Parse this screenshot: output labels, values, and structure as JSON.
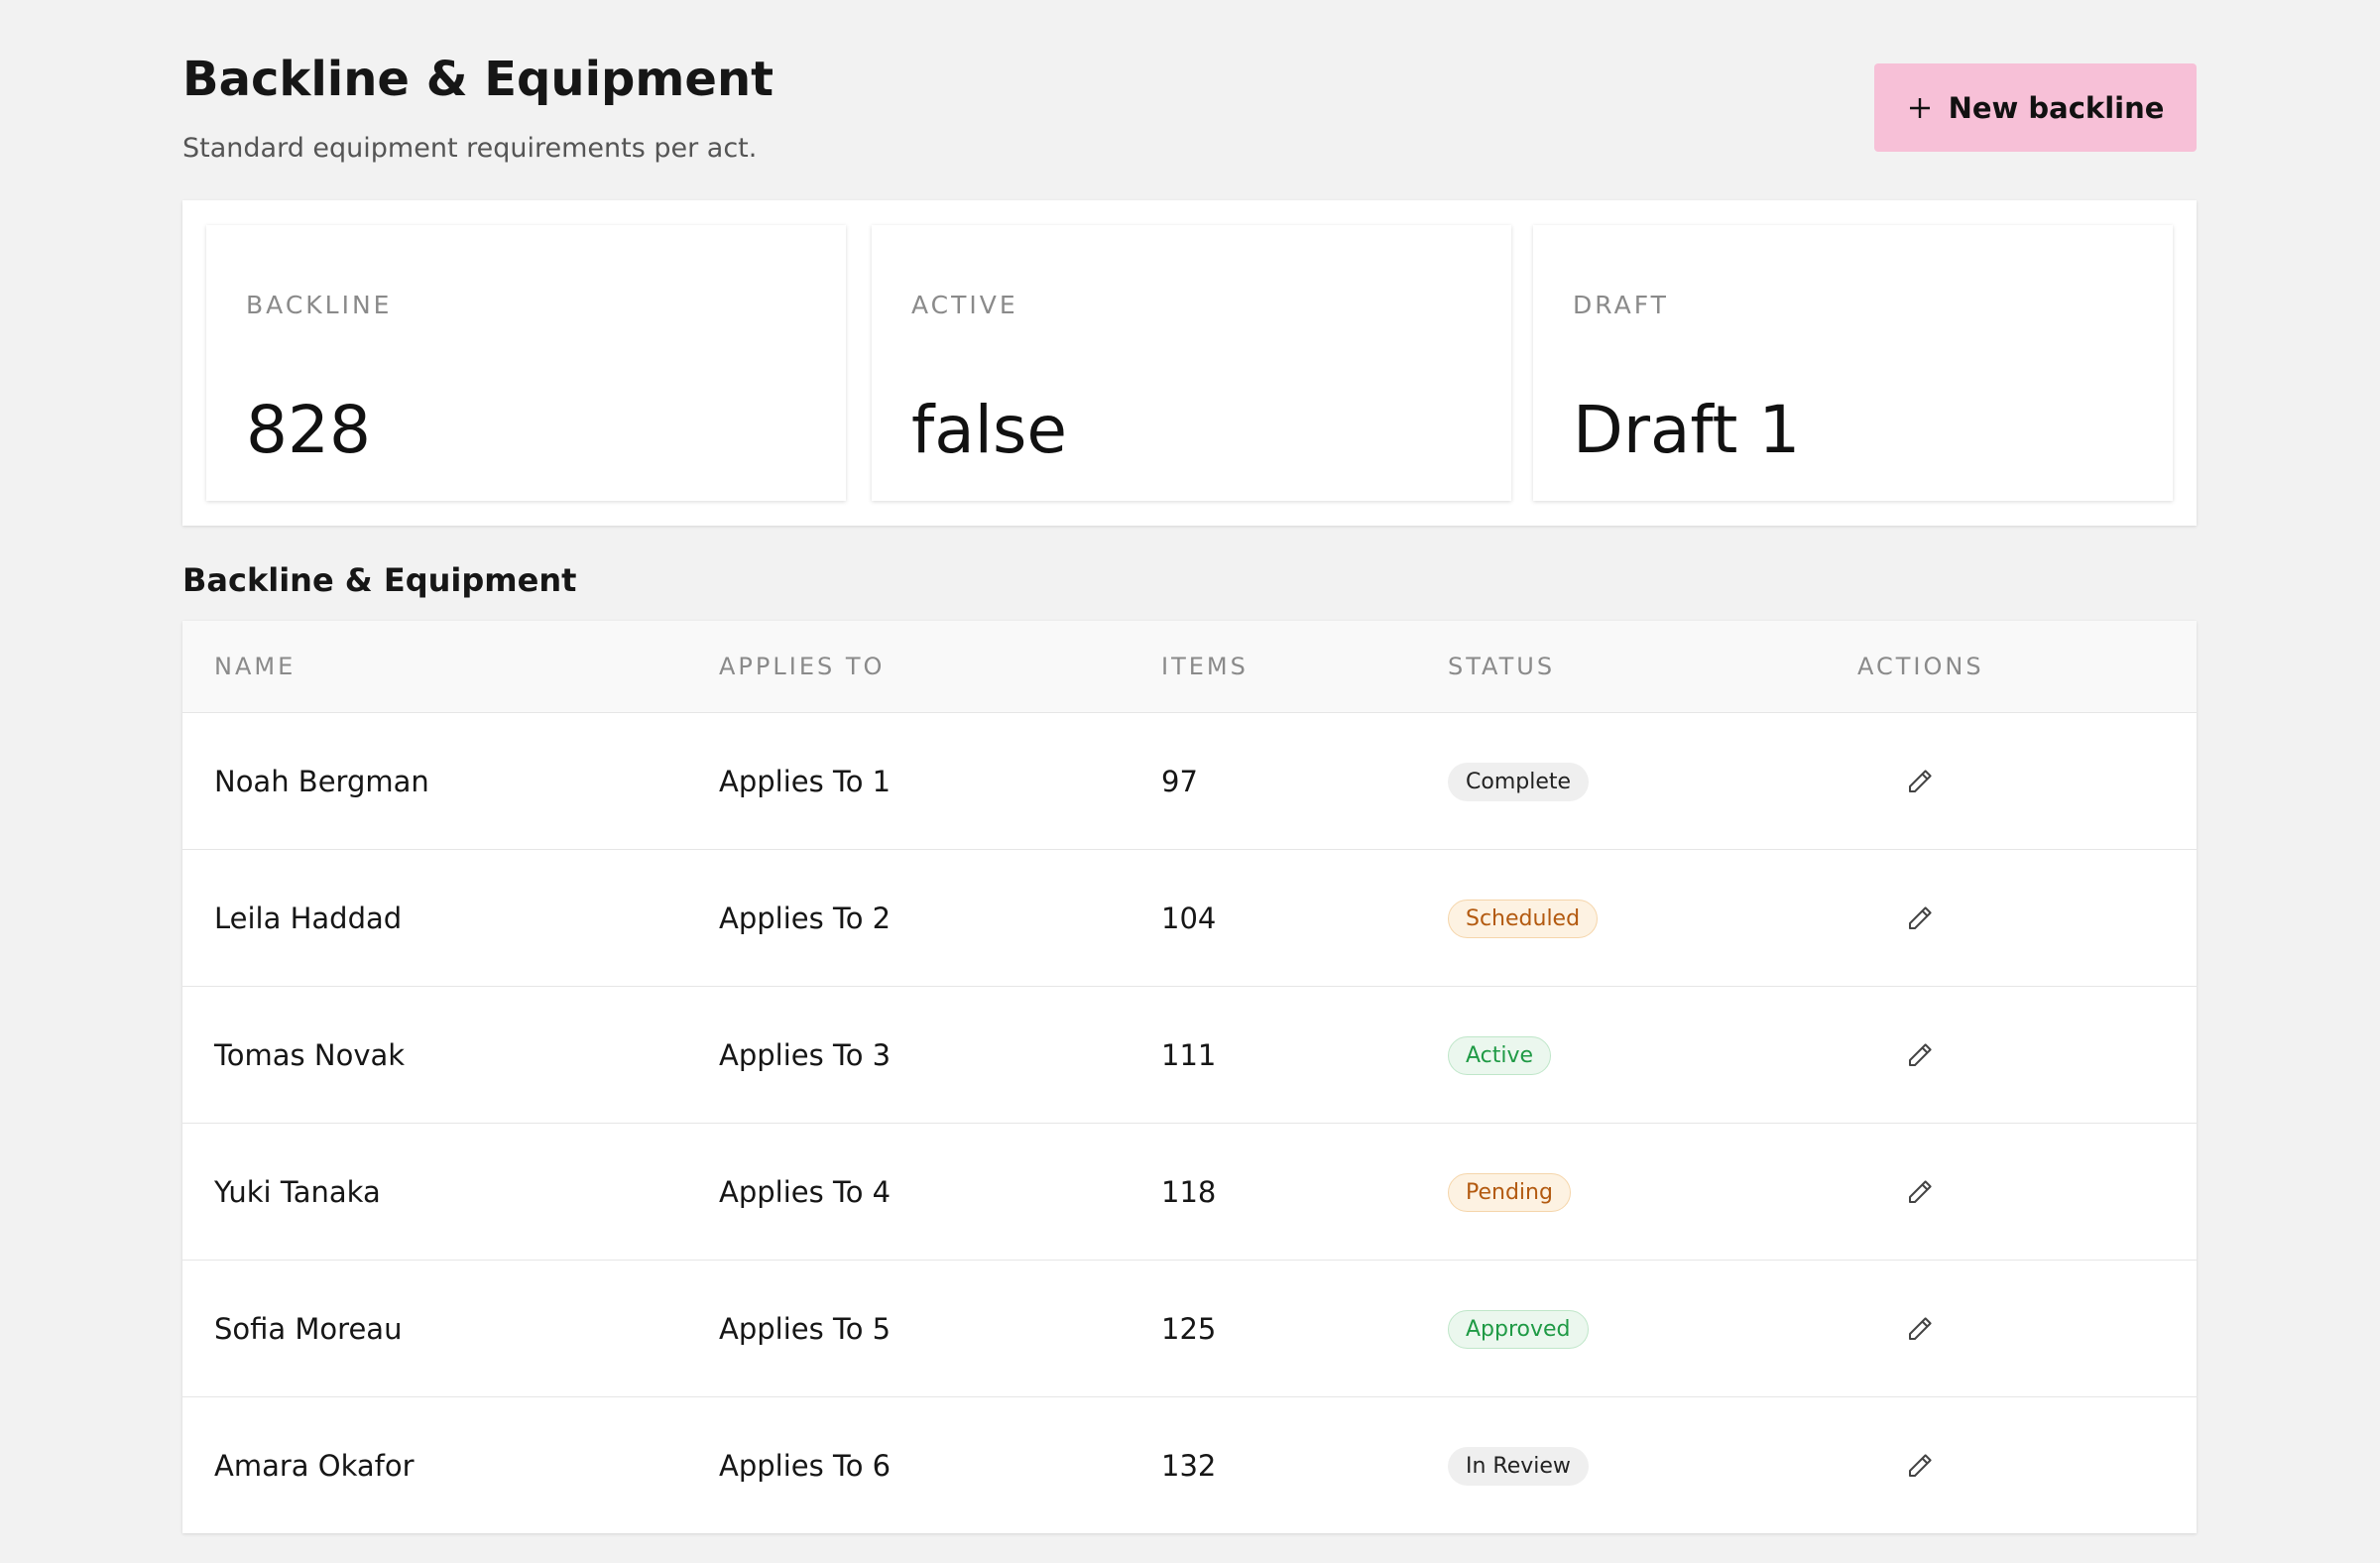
{
  "header": {
    "title": "Backline & Equipment",
    "subtitle": "Standard equipment requirements per act.",
    "button": "New backline"
  },
  "stats": [
    {
      "label": "BACKLINE",
      "value": "828"
    },
    {
      "label": "ACTIVE",
      "value": "false"
    },
    {
      "label": "DRAFT",
      "value": "Draft 1"
    }
  ],
  "section_title": "Backline & Equipment",
  "table": {
    "columns": [
      "NAME",
      "APPLIES TO",
      "ITEMS",
      "STATUS",
      "ACTIONS"
    ],
    "rows": [
      [
        "Noah Bergman",
        "Applies To 1",
        "97",
        "Complete"
      ],
      [
        "Leila Haddad",
        "Applies To 2",
        "104",
        "Scheduled"
      ],
      [
        "Tomas Novak",
        "Applies To 3",
        "111",
        "Active"
      ],
      [
        "Yuki Tanaka",
        "Applies To 4",
        "118",
        "Pending"
      ],
      [
        "Sofia Moreau",
        "Applies To 5",
        "125",
        "Approved"
      ],
      [
        "Amara Okafor",
        "Applies To 6",
        "132",
        "In Review"
      ]
    ],
    "badge_colors": [
      "gray",
      "orange",
      "green",
      "orange",
      "green",
      "gray"
    ]
  }
}
